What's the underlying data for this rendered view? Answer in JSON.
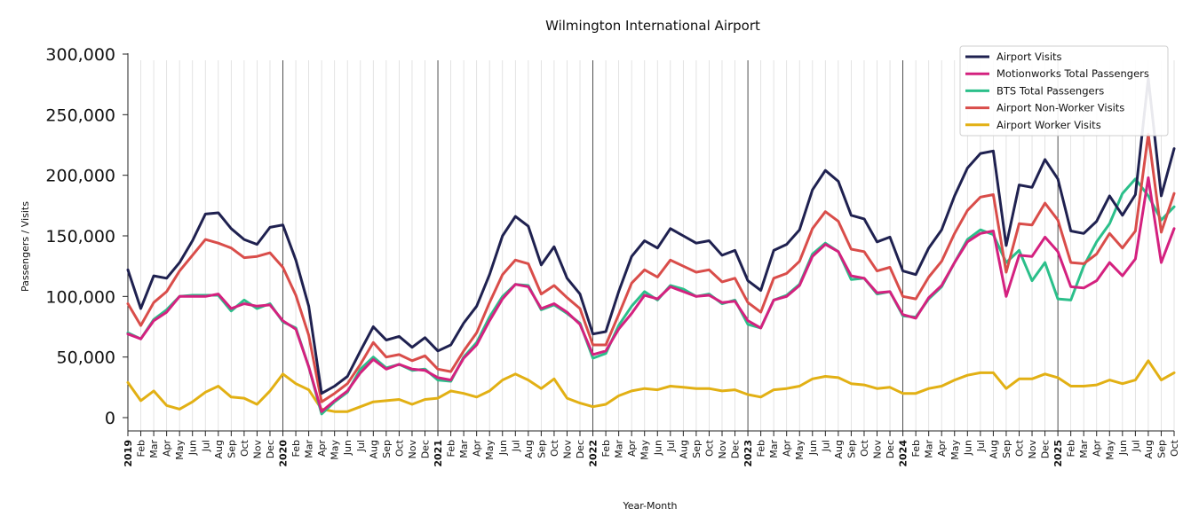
{
  "chart_data": {
    "type": "line",
    "title": "Wilmington International Airport",
    "xlabel": "Year-Month",
    "ylabel": "Passengers / Visits",
    "ylim": [
      0,
      300000
    ],
    "yticks": [
      0,
      50000,
      100000,
      150000,
      200000,
      250000,
      300000
    ],
    "ytick_labels": [
      "0",
      "50,000",
      "100,000",
      "150,000",
      "200,000",
      "250,000",
      "300,000"
    ],
    "legend_position": "top-right",
    "years": [
      "2019",
      "2020",
      "2021",
      "2022",
      "2023",
      "2024",
      "2025"
    ],
    "months": [
      "Jan",
      "Feb",
      "Mar",
      "Apr",
      "May",
      "Jun",
      "Jul",
      "Aug",
      "Sep",
      "Oct",
      "Nov",
      "Dec"
    ],
    "x_start": "2019-01",
    "x_end": "2025-10",
    "series": [
      {
        "name": "Airport Visits",
        "color": "#1f2150",
        "values": [
          122000,
          90000,
          117000,
          115000,
          128000,
          146000,
          168000,
          169000,
          156000,
          147000,
          143000,
          157000,
          159000,
          130000,
          92000,
          20000,
          26000,
          34000,
          55000,
          75000,
          64000,
          67000,
          58000,
          66000,
          55000,
          60000,
          78000,
          92000,
          118000,
          150000,
          166000,
          158000,
          126000,
          141000,
          115000,
          102000,
          69000,
          71000,
          104000,
          133000,
          146000,
          140000,
          156000,
          150000,
          144000,
          146000,
          134000,
          138000,
          113000,
          105000,
          138000,
          143000,
          155000,
          188000,
          204000,
          195000,
          167000,
          164000,
          145000,
          149000,
          121000,
          118000,
          140000,
          155000,
          183000,
          206000,
          218000,
          220000,
          142000,
          192000,
          190000,
          213000,
          197000,
          154000,
          152000,
          162000,
          183000,
          167000,
          184000,
          280000,
          183000,
          222000
        ]
      },
      {
        "name": "Motionworks Total Passengers",
        "color": "#d4217f",
        "values": [
          69000,
          65000,
          80000,
          87000,
          100000,
          100000,
          100000,
          102000,
          90000,
          94000,
          92000,
          93000,
          80000,
          73000,
          42000,
          5000,
          14000,
          22000,
          37000,
          48000,
          40000,
          44000,
          40000,
          39000,
          33000,
          31000,
          49000,
          60000,
          80000,
          98000,
          110000,
          108000,
          90000,
          94000,
          87000,
          77000,
          52000,
          55000,
          73000,
          86000,
          101000,
          98000,
          108000,
          104000,
          100000,
          101000,
          95000,
          96000,
          80000,
          74000,
          97000,
          100000,
          109000,
          133000,
          143000,
          137000,
          117000,
          115000,
          103000,
          104000,
          85000,
          82000,
          99000,
          109000,
          128000,
          145000,
          152000,
          154000,
          100000,
          134000,
          133000,
          149000,
          137000,
          108000,
          107000,
          113000,
          128000,
          117000,
          131000,
          198000,
          128000,
          156000
        ]
      },
      {
        "name": "BTS Total Passengers",
        "color": "#2bbf8a",
        "values": [
          70000,
          65000,
          81000,
          89000,
          100000,
          101000,
          101000,
          101000,
          88000,
          97000,
          90000,
          94000,
          79000,
          74000,
          42000,
          3000,
          13000,
          21000,
          40000,
          50000,
          41000,
          44000,
          39000,
          40000,
          31000,
          30000,
          50000,
          62000,
          83000,
          100000,
          110000,
          109000,
          89000,
          93000,
          86000,
          78000,
          49000,
          53000,
          76000,
          92000,
          104000,
          97000,
          109000,
          106000,
          100000,
          102000,
          94000,
          97000,
          77000,
          74000,
          97000,
          101000,
          110000,
          135000,
          144000,
          137000,
          114000,
          115000,
          102000,
          104000,
          84000,
          83000,
          98000,
          108000,
          128000,
          147000,
          155000,
          151000,
          128000,
          138000,
          113000,
          128000,
          98000,
          97000,
          125000,
          145000,
          160000,
          185000,
          197000,
          183000,
          163000,
          174000
        ]
      },
      {
        "name": "Airport Non-Worker Visits",
        "color": "#d94d4a",
        "values": [
          94000,
          76000,
          95000,
          104000,
          121000,
          134000,
          147000,
          144000,
          140000,
          132000,
          133000,
          136000,
          124000,
          101000,
          68000,
          13000,
          20000,
          28000,
          44000,
          62000,
          50000,
          52000,
          47000,
          51000,
          40000,
          38000,
          55000,
          70000,
          95000,
          118000,
          130000,
          127000,
          102000,
          109000,
          99000,
          90000,
          60000,
          60000,
          85000,
          111000,
          122000,
          116000,
          130000,
          125000,
          120000,
          122000,
          112000,
          115000,
          95000,
          87000,
          115000,
          119000,
          129000,
          156000,
          170000,
          162000,
          139000,
          137000,
          121000,
          124000,
          100000,
          98000,
          116000,
          129000,
          152000,
          171000,
          182000,
          184000,
          120000,
          160000,
          159000,
          177000,
          163000,
          128000,
          127000,
          135000,
          152000,
          140000,
          154000,
          234000,
          153000,
          185000
        ]
      },
      {
        "name": "Airport Worker Visits",
        "color": "#e2b014",
        "values": [
          29000,
          14000,
          22000,
          10000,
          7000,
          13000,
          21000,
          26000,
          17000,
          16000,
          11000,
          22000,
          36000,
          28000,
          23000,
          7000,
          5000,
          5000,
          9000,
          13000,
          14000,
          15000,
          11000,
          15000,
          16000,
          22000,
          20000,
          17000,
          22000,
          31000,
          36000,
          31000,
          24000,
          32000,
          16000,
          12000,
          9000,
          11000,
          18000,
          22000,
          24000,
          23000,
          26000,
          25000,
          24000,
          24000,
          22000,
          23000,
          19000,
          17000,
          23000,
          24000,
          26000,
          32000,
          34000,
          33000,
          28000,
          27000,
          24000,
          25000,
          20000,
          20000,
          24000,
          26000,
          31000,
          35000,
          37000,
          37000,
          24000,
          32000,
          32000,
          36000,
          33000,
          26000,
          26000,
          27000,
          31000,
          28000,
          31000,
          47000,
          31000,
          37000
        ]
      }
    ]
  }
}
